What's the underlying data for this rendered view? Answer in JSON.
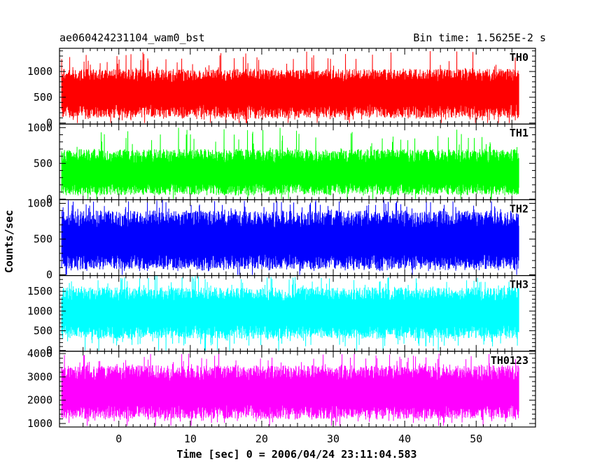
{
  "chart_data": {
    "type": "line",
    "title": "ae060424231104_wam0_bst",
    "subtitle": "Bin time: 1.5625E-2 s",
    "xlabel": "Time [sec] 0 = 2006/04/24 23:11:04.583",
    "ylabel": "Counts/sec",
    "xlim": [
      -8.3,
      58.3
    ],
    "x_ticks": [
      0,
      10,
      20,
      30,
      40,
      50
    ],
    "x_tick_labels": [
      "0",
      "10",
      "20",
      "30",
      "40",
      "50"
    ],
    "data_x_range": [
      -8.0,
      56.0
    ],
    "grid": false,
    "panels": [
      {
        "label": "TH0",
        "color": "#ff0000",
        "ylim": [
          -20,
          1450
        ],
        "y_ticks": [
          0,
          500,
          1000
        ],
        "y_tick_labels": [
          "0",
          "500",
          "1000"
        ],
        "baseline_low": 50,
        "mean": 620,
        "noise_low": 100,
        "noise_high": 1050,
        "spike_max": 1400,
        "min": 0
      },
      {
        "label": "TH1",
        "color": "#00ff00",
        "ylim": [
          -10,
          1050
        ],
        "y_ticks": [
          0,
          500,
          1000
        ],
        "y_tick_labels": [
          "0",
          "500",
          "1000"
        ],
        "baseline_low": 50,
        "mean": 380,
        "noise_low": 60,
        "noise_high": 700,
        "spike_max": 1000,
        "min": 0
      },
      {
        "label": "TH2",
        "color": "#0000ff",
        "ylim": [
          -10,
          1050
        ],
        "y_ticks": [
          0,
          500,
          1000
        ],
        "y_tick_labels": [
          "0",
          "500",
          "1000"
        ],
        "baseline_low": 50,
        "mean": 500,
        "noise_low": 80,
        "noise_high": 900,
        "spike_max": 1050,
        "min": 0
      },
      {
        "label": "TH3",
        "color": "#00ffff",
        "ylim": [
          -20,
          1900
        ],
        "y_ticks": [
          0,
          500,
          1000,
          1500
        ],
        "y_tick_labels": [
          "0",
          "500",
          "1000",
          "1500"
        ],
        "baseline_low": 100,
        "mean": 1000,
        "noise_low": 300,
        "noise_high": 1600,
        "spike_max": 1900,
        "min": 0
      },
      {
        "label": "TH0123",
        "color": "#ff00ff",
        "ylim": [
          850,
          4100
        ],
        "y_ticks": [
          1000,
          2000,
          3000,
          4000
        ],
        "y_tick_labels": [
          "1000",
          "2000",
          "3000",
          "4000"
        ],
        "baseline_low": 1000,
        "mean": 2400,
        "noise_low": 1200,
        "noise_high": 3500,
        "spike_max": 4000,
        "min": 900
      }
    ]
  }
}
